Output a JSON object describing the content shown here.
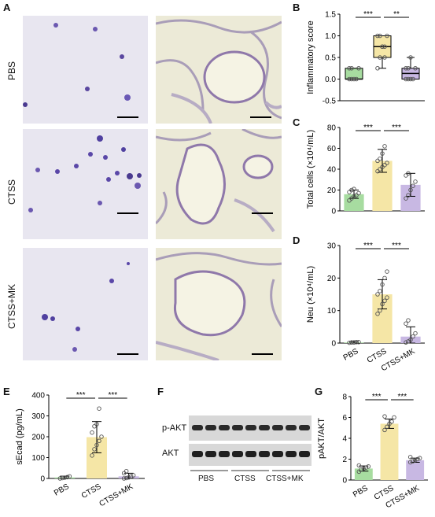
{
  "figure": {
    "panel_letters": {
      "A": "A",
      "B": "B",
      "C": "C",
      "D": "D",
      "E": "E",
      "F": "F",
      "G": "G"
    },
    "row_labels": [
      "PBS",
      "CTSS",
      "CTSS+MK"
    ],
    "colors": {
      "pbs": "#a7dca0",
      "ctss": "#f5e6a6",
      "mk": "#c8b8e3",
      "dots": "#aaaaaa"
    }
  },
  "chart_data": [
    {
      "panel": "B",
      "type": "box",
      "ylabel": "Inflammatory score",
      "ylim": [
        -0.5,
        1.5
      ],
      "yticks": [
        "-0.5",
        "0.0",
        "0.5",
        "1.0",
        "1.5"
      ],
      "categories": [
        "PBS",
        "CTSS",
        "CTSS+MK"
      ],
      "boxes": [
        {
          "min": 0,
          "q1": 0,
          "median": 0,
          "q3": 0.25,
          "max": 0.25
        },
        {
          "min": 0.25,
          "q1": 0.5,
          "median": 0.75,
          "q3": 1.0,
          "max": 1.0
        },
        {
          "min": 0,
          "q1": 0,
          "median": 0.13,
          "q3": 0.25,
          "max": 0.5
        }
      ],
      "points": [
        [
          0,
          0,
          0,
          0,
          0.25,
          0.25,
          0.25
        ],
        [
          0.25,
          0.5,
          0.75,
          0.75,
          1.0,
          1.0,
          1.0,
          0.75,
          0.5
        ],
        [
          0,
          0,
          0,
          0,
          0.25,
          0.25,
          0.25,
          0.5
        ]
      ],
      "significance": [
        "***",
        "**"
      ]
    },
    {
      "panel": "C",
      "type": "bar",
      "ylabel": "Total cells (×10⁴/mL)",
      "ylim": [
        0,
        80
      ],
      "yticks": [
        "0",
        "20",
        "40",
        "60",
        "80"
      ],
      "categories": [
        "PBS",
        "CTSS",
        "CTSS+MK"
      ],
      "values": [
        16,
        48,
        25
      ],
      "errors": [
        4,
        11,
        11
      ],
      "points": [
        [
          10,
          12,
          14,
          15,
          17,
          18,
          20,
          21
        ],
        [
          38,
          40,
          42,
          44,
          46,
          48,
          50,
          55,
          62
        ],
        [
          12,
          15,
          20,
          24,
          28,
          34,
          36
        ]
      ],
      "significance": [
        "***",
        "***"
      ]
    },
    {
      "panel": "D",
      "type": "bar",
      "ylabel": "Neu (×10⁴/mL)",
      "ylim": [
        0,
        30
      ],
      "yticks": [
        "0",
        "10",
        "20",
        "30"
      ],
      "categories": [
        "PBS",
        "CTSS",
        "CTSS+MK"
      ],
      "xticklabels": [
        "PBS",
        "CTSS",
        "CTSS+MK"
      ],
      "values": [
        0.2,
        15,
        2
      ],
      "errors": [
        0.3,
        4.5,
        3
      ],
      "points": [
        [
          0.1,
          0.2,
          0.2,
          0.3,
          0.3
        ],
        [
          9,
          10,
          12,
          13,
          14,
          15,
          16,
          18,
          20,
          22
        ],
        [
          0.2,
          0.5,
          1,
          2,
          3,
          6,
          7
        ]
      ],
      "significance": [
        "***",
        "***"
      ]
    },
    {
      "panel": "E",
      "type": "bar",
      "ylabel": "sEcad (pg/mL)",
      "ylim": [
        0,
        400
      ],
      "yticks": [
        "0",
        "100",
        "200",
        "300",
        "400"
      ],
      "categories": [
        "PBS",
        "CTSS",
        "CTSS+MK"
      ],
      "xticklabels": [
        "PBS",
        "CTSS",
        "CTSS+MK"
      ],
      "values": [
        5,
        198,
        10
      ],
      "errors": [
        6,
        75,
        15
      ],
      "points": [
        [
          0,
          2,
          4,
          6,
          10
        ],
        [
          110,
          140,
          160,
          180,
          200,
          220,
          250,
          260,
          335
        ],
        [
          0,
          2,
          5,
          10,
          15,
          25,
          35
        ]
      ],
      "significance": [
        "***",
        "***"
      ]
    },
    {
      "panel": "G",
      "type": "bar",
      "ylabel": "pAKT/AKT",
      "ylim": [
        0,
        8
      ],
      "yticks": [
        "0",
        "2",
        "4",
        "6",
        "8"
      ],
      "categories": [
        "PBS",
        "CTSS",
        "CTSS+MK"
      ],
      "xticklabels": [
        "PBS",
        "CTSS",
        "CTSS+MK"
      ],
      "values": [
        1.1,
        5.4,
        1.9
      ],
      "errors": [
        0.25,
        0.45,
        0.2
      ],
      "points": [
        [
          0.8,
          1.0,
          1.1,
          1.2,
          1.3,
          1.4
        ],
        [
          4.8,
          5.1,
          5.4,
          5.6,
          6.0,
          6.1
        ],
        [
          1.7,
          1.8,
          1.9,
          2.0,
          2.1,
          2.2
        ]
      ],
      "significance": [
        "***",
        "***"
      ]
    }
  ],
  "blot": {
    "labels": [
      "p-AKT",
      "AKT"
    ],
    "groups": [
      "PBS",
      "CTSS",
      "CTSS+MK"
    ]
  }
}
